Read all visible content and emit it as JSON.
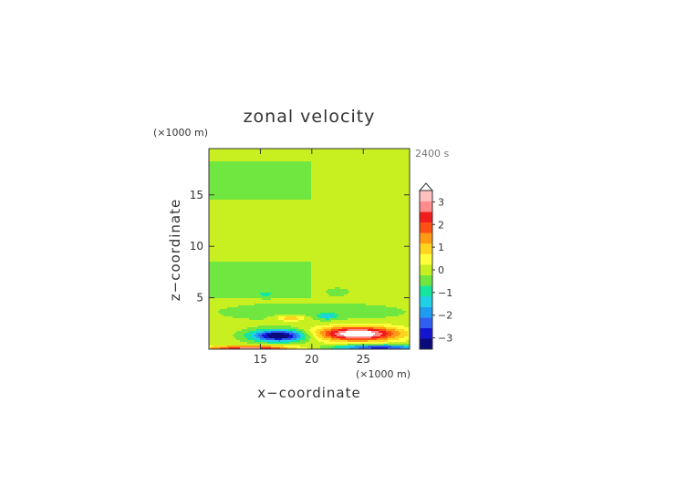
{
  "chart_data": {
    "type": "heatmap",
    "title": "zonal velocity",
    "xlabel": "x−coordinate",
    "ylabel": "z−coordinate",
    "x_unit": "(×1000 m)",
    "y_unit": "(×1000 m)",
    "time_label": "2400 s",
    "xlim": [
      10,
      29.5
    ],
    "ylim": [
      0,
      19.5
    ],
    "x_ticks": [
      15,
      20,
      25
    ],
    "y_ticks": [
      5,
      10,
      15
    ],
    "x_tick_labels": [
      "15",
      "20",
      "25"
    ],
    "y_tick_labels": [
      "5",
      "10",
      "15"
    ],
    "colorbar": {
      "levels": [
        -3.5,
        -3,
        -2.5,
        -2,
        -1.5,
        -1,
        -0.5,
        0,
        0.5,
        1,
        1.5,
        2,
        2.5,
        3,
        3.5
      ],
      "colors": [
        "#0a0a7a",
        "#1515d0",
        "#2f5ff0",
        "#1e9cf0",
        "#20d0e6",
        "#14e6a0",
        "#70e640",
        "#c8f020",
        "#ffff3c",
        "#ffd41e",
        "#ff9a14",
        "#ff5014",
        "#f01c1c",
        "#ff8c8c",
        "#ffc0c0"
      ],
      "tick_values": [
        -3,
        -2,
        -1,
        0,
        1,
        2,
        3
      ],
      "tick_labels": [
        "−3",
        "−2",
        "−1",
        "0",
        "1",
        "2",
        "3"
      ],
      "extend": "max"
    },
    "bands": [
      {
        "z_from": 18.2,
        "z_to": 19.5,
        "value_west": 0.2,
        "value_east": 0.2
      },
      {
        "z_from": 14.5,
        "z_to": 18.2,
        "value_west": -0.2,
        "value_east": 0.2
      },
      {
        "z_from": 8.5,
        "z_to": 14.5,
        "value_west": 0.2,
        "value_east": 0.2
      },
      {
        "z_from": 5.0,
        "z_to": 8.5,
        "value_west": -0.2,
        "value_east": 0.2
      },
      {
        "z_from": 0.0,
        "z_to": 5.0,
        "value_west": 0.2,
        "value_east": 0.2
      }
    ],
    "features": [
      {
        "name": "jet-west-negative",
        "x_center": 16.8,
        "z_center": 1.3,
        "half_width": 2.8,
        "half_height": 0.6,
        "value": -4.0
      },
      {
        "name": "jet-east-positive",
        "x_center": 24.5,
        "z_center": 1.5,
        "half_width": 4.2,
        "half_height": 0.75,
        "value": 4.0
      },
      {
        "name": "surface-east-negative",
        "x_center": 26.5,
        "z_center": 0.15,
        "half_width": 4.5,
        "half_height": 0.3,
        "value": -3.0
      },
      {
        "name": "surface-west-positive",
        "x_center": 14.0,
        "z_center": 0.1,
        "half_width": 4.5,
        "half_height": 0.25,
        "value": 3.0
      },
      {
        "name": "blob-west-upper",
        "x_center": 18.0,
        "z_center": 3.0,
        "half_width": 1.5,
        "half_height": 0.3,
        "value": 1.5
      },
      {
        "name": "blob-east-upper",
        "x_center": 21.5,
        "z_center": 3.2,
        "half_width": 1.0,
        "half_height": 0.3,
        "value": -1.3
      },
      {
        "name": "lower-layer",
        "x_center": 20.0,
        "z_center": 3.6,
        "half_width": 12.0,
        "half_height": 1.2,
        "value": -0.4
      },
      {
        "name": "wave-west",
        "x_center": 15.5,
        "z_center": 5.4,
        "half_width": 2.0,
        "half_height": 0.6,
        "value": -0.3
      },
      {
        "name": "wave-east",
        "x_center": 22.5,
        "z_center": 5.6,
        "half_width": 1.8,
        "half_height": 0.6,
        "value": -0.3
      }
    ]
  }
}
